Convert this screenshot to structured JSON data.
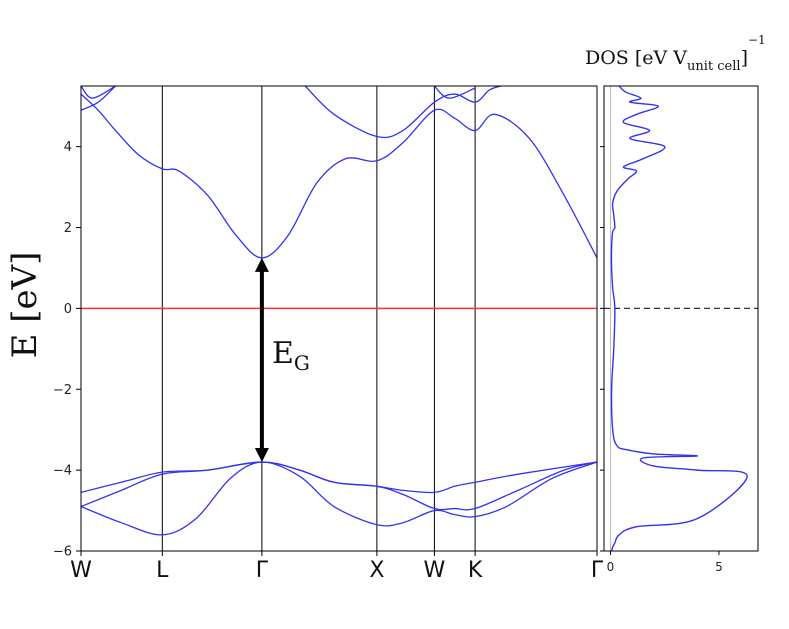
{
  "chart_data": [
    {
      "type": "line",
      "ylabel": "E [eV]",
      "ylim": [
        -6,
        5.5
      ],
      "yticks": [
        -6,
        -4,
        -2,
        0,
        2,
        4
      ],
      "ytick_labels": [
        "−6",
        "−4",
        "−2",
        "0",
        "2",
        "4"
      ],
      "kpoints": [
        {
          "label": "W",
          "x": 0.0
        },
        {
          "label": "L",
          "x": 0.707
        },
        {
          "label": "Γ",
          "x": 1.573
        },
        {
          "label": "X",
          "x": 2.573
        },
        {
          "label": "W",
          "x": 3.073
        },
        {
          "label": "K",
          "x": 3.427
        },
        {
          "label": "Γ",
          "x": 4.487
        }
      ],
      "xlim": [
        0,
        4.487
      ],
      "fermi_level": 0,
      "fermi_color": "#ff3333",
      "band_color": "#3333ee",
      "gap_annotation": {
        "label": "E",
        "subscript": "G",
        "from": [
          1.573,
          -3.8
        ],
        "to": [
          1.573,
          1.25
        ]
      },
      "bands": [
        {
          "name": "",
          "points": [
            [
              0,
              -4.9
            ],
            [
              0.35,
              -5.3
            ],
            [
              0.707,
              -5.6
            ],
            [
              1.0,
              -5.2
            ],
            [
              1.3,
              -4.2
            ],
            [
              1.573,
              -3.8
            ],
            [
              1.9,
              -4.15
            ],
            [
              2.2,
              -4.9
            ],
            [
              2.573,
              -5.35
            ],
            [
              2.8,
              -5.3
            ],
            [
              3.073,
              -5.0
            ],
            [
              3.25,
              -5.1
            ],
            [
              3.427,
              -5.15
            ],
            [
              3.7,
              -4.9
            ],
            [
              4.1,
              -4.2
            ],
            [
              4.487,
              -3.8
            ]
          ]
        },
        {
          "name": "",
          "points": [
            [
              0,
              -4.9
            ],
            [
              0.35,
              -4.5
            ],
            [
              0.707,
              -4.1
            ],
            [
              1.1,
              -4.0
            ],
            [
              1.573,
              -3.8
            ],
            [
              1.9,
              -4.0
            ],
            [
              2.2,
              -4.3
            ],
            [
              2.573,
              -4.4
            ],
            [
              2.8,
              -4.5
            ],
            [
              3.073,
              -4.55
            ],
            [
              3.25,
              -4.4
            ],
            [
              3.427,
              -4.3
            ],
            [
              3.8,
              -4.1
            ],
            [
              4.487,
              -3.8
            ]
          ]
        },
        {
          "name": "",
          "points": [
            [
              0,
              -4.55
            ],
            [
              0.35,
              -4.3
            ],
            [
              0.707,
              -4.05
            ],
            [
              1.1,
              -4.0
            ],
            [
              1.573,
              -3.8
            ],
            [
              1.9,
              -4.0
            ],
            [
              2.2,
              -4.3
            ],
            [
              2.573,
              -4.4
            ],
            [
              2.8,
              -4.6
            ],
            [
              3.073,
              -4.95
            ],
            [
              3.25,
              -4.95
            ],
            [
              3.427,
              -4.95
            ],
            [
              3.8,
              -4.5
            ],
            [
              4.2,
              -4.0
            ],
            [
              4.487,
              -3.8
            ]
          ]
        },
        {
          "name": "",
          "points": [
            [
              0,
              5.3
            ],
            [
              0.15,
              4.9
            ],
            [
              0.3,
              4.4
            ],
            [
              0.5,
              3.8
            ],
            [
              0.707,
              3.45
            ],
            [
              0.85,
              3.4
            ],
            [
              1.1,
              2.8
            ],
            [
              1.35,
              1.8
            ],
            [
              1.573,
              1.25
            ],
            [
              1.8,
              1.8
            ],
            [
              2.05,
              3.1
            ],
            [
              2.3,
              3.7
            ],
            [
              2.573,
              3.65
            ],
            [
              2.8,
              4.1
            ],
            [
              3.073,
              4.9
            ],
            [
              3.25,
              4.7
            ],
            [
              3.427,
              4.4
            ],
            [
              3.6,
              4.8
            ],
            [
              3.9,
              4.2
            ],
            [
              4.2,
              2.8
            ],
            [
              4.487,
              1.25
            ]
          ]
        },
        {
          "name": "",
          "points": [
            [
              0,
              4.9
            ],
            [
              0.15,
              5.1
            ],
            [
              0.3,
              5.5
            ]
          ]
        },
        {
          "name": "",
          "points": [
            [
              1.95,
              5.5
            ],
            [
              2.2,
              4.8
            ],
            [
              2.573,
              4.25
            ],
            [
              2.8,
              4.4
            ],
            [
              3.073,
              5.1
            ],
            [
              3.25,
              5.3
            ],
            [
              3.427,
              5.1
            ],
            [
              3.55,
              5.4
            ],
            [
              3.65,
              5.5
            ]
          ]
        },
        {
          "name": "",
          "points": [
            [
              0,
              5.5
            ],
            [
              0.1,
              5.2
            ],
            [
              0.3,
              5.5
            ]
          ]
        },
        {
          "name": "",
          "points": [
            [
              3.073,
              5.5
            ],
            [
              3.2,
              5.2
            ],
            [
              3.427,
              5.45
            ]
          ]
        }
      ]
    },
    {
      "type": "line",
      "title": "DOS [eV V",
      "title_subscript": "unit cell",
      "title_close": "]",
      "title_superscript": "−1",
      "xlim": [
        -0.3,
        6.8
      ],
      "ylim": [
        -6,
        5.5
      ],
      "xticks": [
        0,
        5
      ],
      "xtick_labels": [
        "0",
        "5"
      ],
      "zero_line": "dashed",
      "series": [
        {
          "name": "",
          "x": [
            0.05,
            0.1,
            0.2,
            0.4,
            1.2,
            4.0,
            6.3,
            4.0,
            2.0,
            1.5,
            4.0,
            2.0,
            0.8,
            0.3,
            0.1,
            0.05,
            0.15,
            0.2,
            0.1,
            0.05,
            0.05,
            0.1,
            0.2,
            0.15,
            0.1,
            0.3,
            0.8,
            1.2,
            0.6,
            1.5,
            2.5,
            0.9,
            1.8,
            0.6,
            1.2,
            2.2,
            0.9,
            1.4,
            0.7,
            0.4
          ],
          "y": [
            -6.0,
            -5.9,
            -5.8,
            -5.6,
            -5.4,
            -5.2,
            -4.15,
            -4.0,
            -3.9,
            -3.7,
            -3.65,
            -3.6,
            -3.5,
            -3.4,
            -3.0,
            -2.0,
            -1.0,
            0.0,
            0.5,
            1.0,
            1.5,
            1.9,
            2.0,
            2.3,
            2.6,
            2.9,
            3.2,
            3.4,
            3.5,
            3.7,
            4.0,
            4.2,
            4.4,
            4.6,
            4.8,
            5.0,
            5.1,
            5.2,
            5.35,
            5.5
          ]
        }
      ]
    }
  ]
}
